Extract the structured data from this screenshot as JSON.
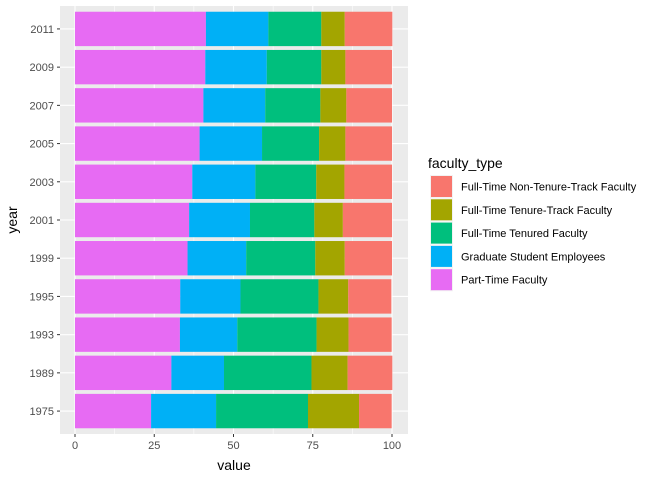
{
  "chart_data": {
    "type": "bar",
    "orientation": "horizontal",
    "stacked": true,
    "xlabel": "value",
    "ylabel": "year",
    "xlim": [
      0,
      100
    ],
    "x_ticks": [
      0,
      25,
      50,
      75,
      100
    ],
    "grid": true,
    "legend_position": "right",
    "legend_title": "faculty_type",
    "categories": [
      "1975",
      "1989",
      "1993",
      "1995",
      "1999",
      "2001",
      "2003",
      "2005",
      "2007",
      "2009",
      "2011"
    ],
    "series": [
      {
        "name": "Part-Time Faculty",
        "color": "#E76BF3",
        "values": [
          24.0,
          30.4,
          33.1,
          33.2,
          35.5,
          36.0,
          37.0,
          39.3,
          40.5,
          41.1,
          41.3
        ]
      },
      {
        "name": "Graduate Student Employees",
        "color": "#00B0F6",
        "values": [
          20.5,
          16.6,
          18.1,
          19.0,
          18.5,
          19.2,
          19.9,
          19.7,
          19.5,
          19.4,
          19.7
        ]
      },
      {
        "name": "Full-Time Tenured Faculty",
        "color": "#00BF7D",
        "values": [
          29.0,
          27.6,
          25.0,
          24.6,
          21.8,
          20.3,
          19.2,
          18.0,
          17.4,
          17.2,
          16.7
        ]
      },
      {
        "name": "Full-Time Tenure-Track Faculty",
        "color": "#A3A500",
        "values": [
          16.1,
          11.4,
          10.1,
          9.4,
          9.3,
          9.0,
          8.9,
          8.3,
          8.2,
          7.6,
          7.4
        ]
      },
      {
        "name": "Full-Time Non-Tenure-Track Faculty",
        "color": "#F8766D",
        "values": [
          10.3,
          14.1,
          13.6,
          13.6,
          14.9,
          15.5,
          15.0,
          14.7,
          14.4,
          14.7,
          15.0
        ]
      }
    ],
    "legend_order": [
      "Full-Time Non-Tenure-Track Faculty",
      "Full-Time Tenure-Track Faculty",
      "Full-Time Tenured Faculty",
      "Graduate Student Employees",
      "Part-Time Faculty"
    ]
  }
}
